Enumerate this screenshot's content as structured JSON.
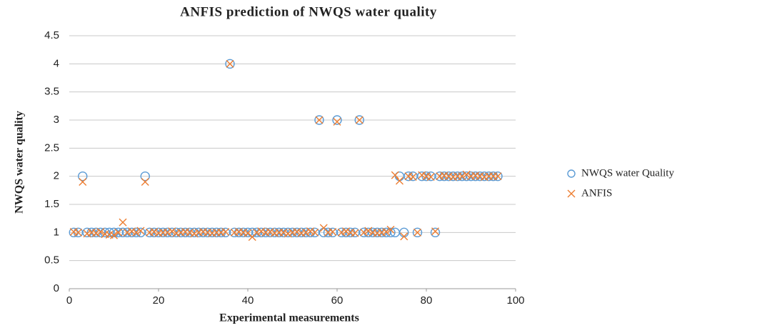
{
  "chart_data": {
    "type": "scatter",
    "title": "ANFIS prediction  of NWQS water quality",
    "x_label": "Experimental  measurements",
    "y_label": "NWQS water quality",
    "x": [
      1,
      2,
      3,
      4,
      5,
      6,
      7,
      8,
      9,
      10,
      11,
      12,
      13,
      14,
      15,
      16,
      17,
      18,
      19,
      20,
      21,
      22,
      23,
      24,
      25,
      26,
      27,
      28,
      29,
      30,
      31,
      32,
      33,
      34,
      35,
      36,
      37,
      38,
      39,
      40,
      41,
      42,
      43,
      44,
      45,
      46,
      47,
      48,
      49,
      50,
      51,
      52,
      53,
      54,
      55,
      56,
      57,
      58,
      59,
      60,
      61,
      62,
      63,
      64,
      65,
      66,
      67,
      68,
      69,
      70,
      71,
      72,
      73,
      74,
      75,
      76,
      77,
      78,
      79,
      80,
      81,
      82,
      83,
      84,
      85,
      86,
      87,
      88,
      89,
      90,
      91,
      92,
      93,
      94,
      95,
      96
    ],
    "series": [
      {
        "name": "NWQS water Quality",
        "color": "#5b9bd5",
        "marker": "circle",
        "values": [
          1,
          1,
          2,
          1,
          1,
          1,
          1,
          1,
          1,
          1,
          1,
          1,
          1,
          1,
          1,
          1,
          2,
          1,
          1,
          1,
          1,
          1,
          1,
          1,
          1,
          1,
          1,
          1,
          1,
          1,
          1,
          1,
          1,
          1,
          1,
          4,
          1,
          1,
          1,
          1,
          1,
          1,
          1,
          1,
          1,
          1,
          1,
          1,
          1,
          1,
          1,
          1,
          1,
          1,
          1,
          3,
          1,
          1,
          1,
          3,
          1,
          1,
          1,
          1,
          3,
          1,
          1,
          1,
          1,
          1,
          1,
          1,
          1,
          2,
          1,
          2,
          2,
          1,
          2,
          2,
          2,
          1,
          2,
          2,
          2,
          2,
          2,
          2,
          2,
          2,
          2,
          2,
          2,
          2,
          2,
          2
        ]
      },
      {
        "name": "ANFIS",
        "color": "#ed7d31",
        "marker": "x",
        "values": [
          1.01,
          1.0,
          1.9,
          0.98,
          1.0,
          0.99,
          1.01,
          0.97,
          0.96,
          0.95,
          1.0,
          1.18,
          1.0,
          1.02,
          1.0,
          1.03,
          1.9,
          1.0,
          1.01,
          0.99,
          1.0,
          1.0,
          1.02,
          0.99,
          1.0,
          1.01,
          1.0,
          0.98,
          1.0,
          1.01,
          1.0,
          0.99,
          1.0,
          1.0,
          1.01,
          4.0,
          1.0,
          1.01,
          1.0,
          0.99,
          0.92,
          1.0,
          1.02,
          1.0,
          1.01,
          0.99,
          1.0,
          1.0,
          0.98,
          1.0,
          1.01,
          0.99,
          1.0,
          1.02,
          1.0,
          3.0,
          1.08,
          1.0,
          1.01,
          2.97,
          1.0,
          1.02,
          1.0,
          0.99,
          3.0,
          1.0,
          1.03,
          1.0,
          0.99,
          1.0,
          1.01,
          1.05,
          2.02,
          1.92,
          0.93,
          2.0,
          1.99,
          1.0,
          2.02,
          2.0,
          1.99,
          1.02,
          2.0,
          2.01,
          2.0,
          1.99,
          2.0,
          2.0,
          2.03,
          2.0,
          2.01,
          2.0,
          1.99,
          2.0,
          2.0,
          2.0
        ]
      }
    ],
    "xlim": [
      0,
      100
    ],
    "xticks": [
      0,
      20,
      40,
      60,
      80,
      100
    ],
    "ylim": [
      0,
      4.5
    ],
    "yticks": [
      0,
      0.5,
      1,
      1.5,
      2,
      2.5,
      3,
      3.5,
      4,
      4.5
    ],
    "grid": true,
    "legend": "right"
  }
}
